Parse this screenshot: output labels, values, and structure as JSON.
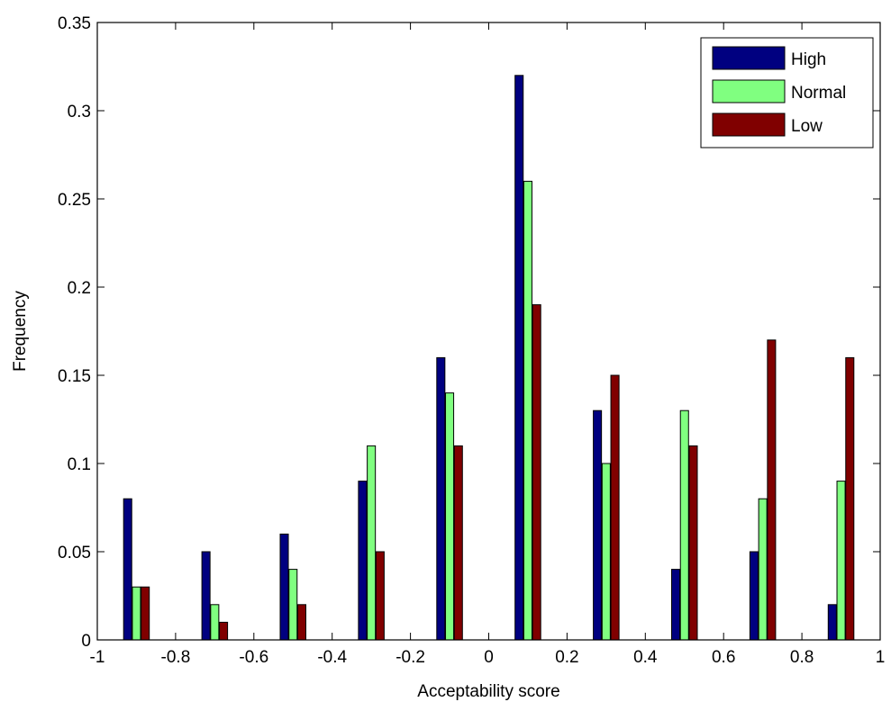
{
  "chart_data": {
    "type": "bar",
    "title": "",
    "xlabel": "Acceptability score",
    "ylabel": "Frequency",
    "xlim": [
      -1,
      1
    ],
    "ylim": [
      0,
      0.35
    ],
    "grid": false,
    "legend_position": "top-right",
    "x": [
      -0.9,
      -0.7,
      -0.5,
      -0.3,
      -0.1,
      0.1,
      0.3,
      0.5,
      0.7,
      0.9
    ],
    "x_ticks": [
      -1,
      -0.8,
      -0.6,
      -0.4,
      -0.2,
      0,
      0.2,
      0.4,
      0.6,
      0.8,
      1
    ],
    "x_tick_labels": [
      "-1",
      "-0.8",
      "-0.6",
      "-0.4",
      "-0.2",
      "0",
      "0.2",
      "0.4",
      "0.6",
      "0.8",
      "1"
    ],
    "y_ticks": [
      0,
      0.05,
      0.1,
      0.15,
      0.2,
      0.25,
      0.3,
      0.35
    ],
    "y_tick_labels": [
      "0",
      "0.05",
      "0.1",
      "0.15",
      "0.2",
      "0.25",
      "0.3",
      "0.35"
    ],
    "series": [
      {
        "name": "High",
        "color": "#000080",
        "values": [
          0.08,
          0.05,
          0.06,
          0.09,
          0.16,
          0.32,
          0.13,
          0.04,
          0.05,
          0.02
        ]
      },
      {
        "name": "Normal",
        "color": "#80FF80",
        "values": [
          0.03,
          0.02,
          0.04,
          0.11,
          0.14,
          0.26,
          0.1,
          0.13,
          0.08,
          0.09
        ]
      },
      {
        "name": "Low",
        "color": "#800000",
        "values": [
          0.03,
          0.01,
          0.02,
          0.05,
          0.11,
          0.19,
          0.15,
          0.11,
          0.17,
          0.16
        ]
      }
    ]
  }
}
